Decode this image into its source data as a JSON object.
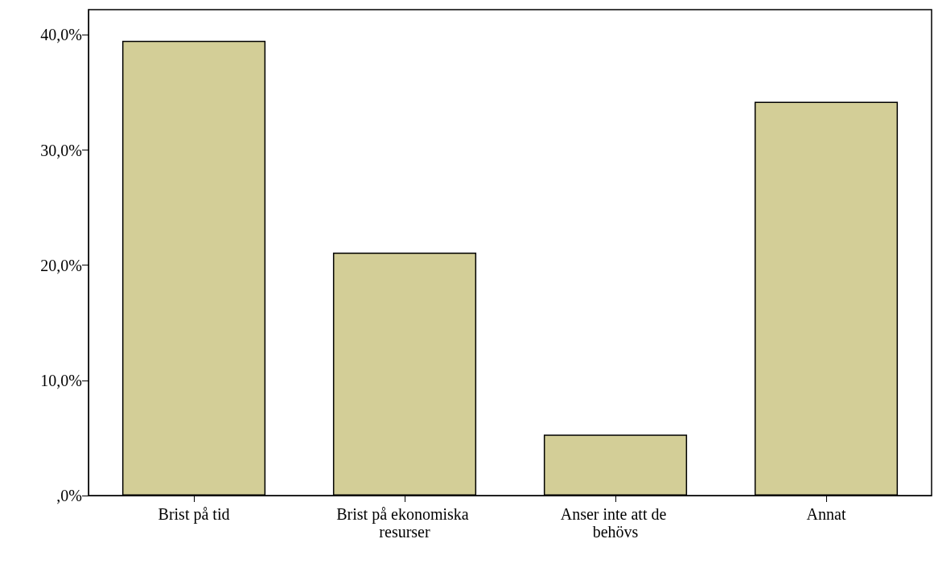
{
  "chart_data": {
    "type": "bar",
    "categories": [
      "Brist på tid",
      "Brist på ekonomiska resurser",
      "Anser inte att de behövs",
      "Annat"
    ],
    "values": [
      39.5,
      21.1,
      5.3,
      34.2
    ],
    "color": "#d3ce97",
    "ylim": [
      0,
      42.2
    ],
    "yticks": [
      {
        "value": 0,
        "label": ",0%"
      },
      {
        "value": 10,
        "label": "10,0%"
      },
      {
        "value": 20,
        "label": "20,0%"
      },
      {
        "value": 30,
        "label": "30,0%"
      },
      {
        "value": 40,
        "label": "40,0%"
      }
    ],
    "grid": false
  }
}
